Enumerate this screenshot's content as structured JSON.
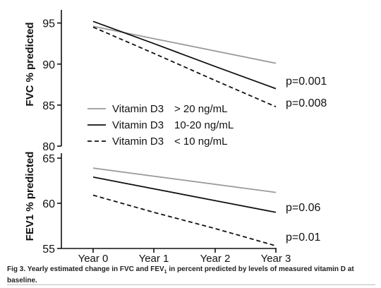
{
  "chart_data": [
    {
      "type": "line",
      "ylabel": "FVC % predicted",
      "ylim": [
        80,
        96
      ],
      "yticks": [
        80,
        85,
        90,
        95
      ],
      "x": [
        "Year 0",
        "Year 1",
        "Year 2",
        "Year 3"
      ],
      "series": [
        {
          "name": "Vitamin D3 > 20 ng/mL",
          "values": [
            94.6,
            93.1,
            91.6,
            90.1
          ],
          "color": "#9a9a9a",
          "dash": "solid",
          "pvalue": ""
        },
        {
          "name": "Vitamin D3 10-20 ng/mL",
          "values": [
            95.2,
            92.5,
            89.7,
            87.0
          ],
          "color": "#111111",
          "dash": "solid",
          "pvalue": "p=0.001"
        },
        {
          "name": "Vitamin D3 < 10 ng/mL",
          "values": [
            94.5,
            91.3,
            88.0,
            84.8
          ],
          "color": "#111111",
          "dash": "dashed",
          "pvalue": "p=0.008"
        }
      ],
      "legend": [
        {
          "label": "Vitamin D3",
          "range": "> 20 ng/mL"
        },
        {
          "label": "Vitamin D3",
          "range": "10-20 ng/mL"
        },
        {
          "label": "Vitamin D3",
          "range": "< 10 ng/mL"
        }
      ],
      "legend_position": "lower-left"
    },
    {
      "type": "line",
      "ylabel": "FEV1 % predicted",
      "ylim": [
        55,
        65
      ],
      "yticks": [
        55,
        60,
        65
      ],
      "x": [
        "Year 0",
        "Year 1",
        "Year 2",
        "Year 3"
      ],
      "xticks": [
        "Year 0",
        "Year 1",
        "Year 2",
        "Year 3"
      ],
      "series": [
        {
          "name": "Vitamin D3 > 20 ng/mL",
          "values": [
            63.9,
            63.0,
            62.1,
            61.2
          ],
          "color": "#9a9a9a",
          "dash": "solid",
          "pvalue": ""
        },
        {
          "name": "Vitamin D3 10-20 ng/mL",
          "values": [
            62.9,
            61.6,
            60.3,
            59.0
          ],
          "color": "#111111",
          "dash": "solid",
          "pvalue": "p=0.06"
        },
        {
          "name": "Vitamin D3 < 10 ng/mL",
          "values": [
            60.9,
            59.0,
            57.2,
            55.3
          ],
          "color": "#111111",
          "dash": "dashed",
          "pvalue": "p=0.01"
        }
      ]
    }
  ],
  "caption": {
    "prefix": "Fig 3. Yearly estimated change in FVC and FEV",
    "subscript": "1",
    "suffix": " in percent predicted by levels of measured vitamin D at baseline."
  }
}
